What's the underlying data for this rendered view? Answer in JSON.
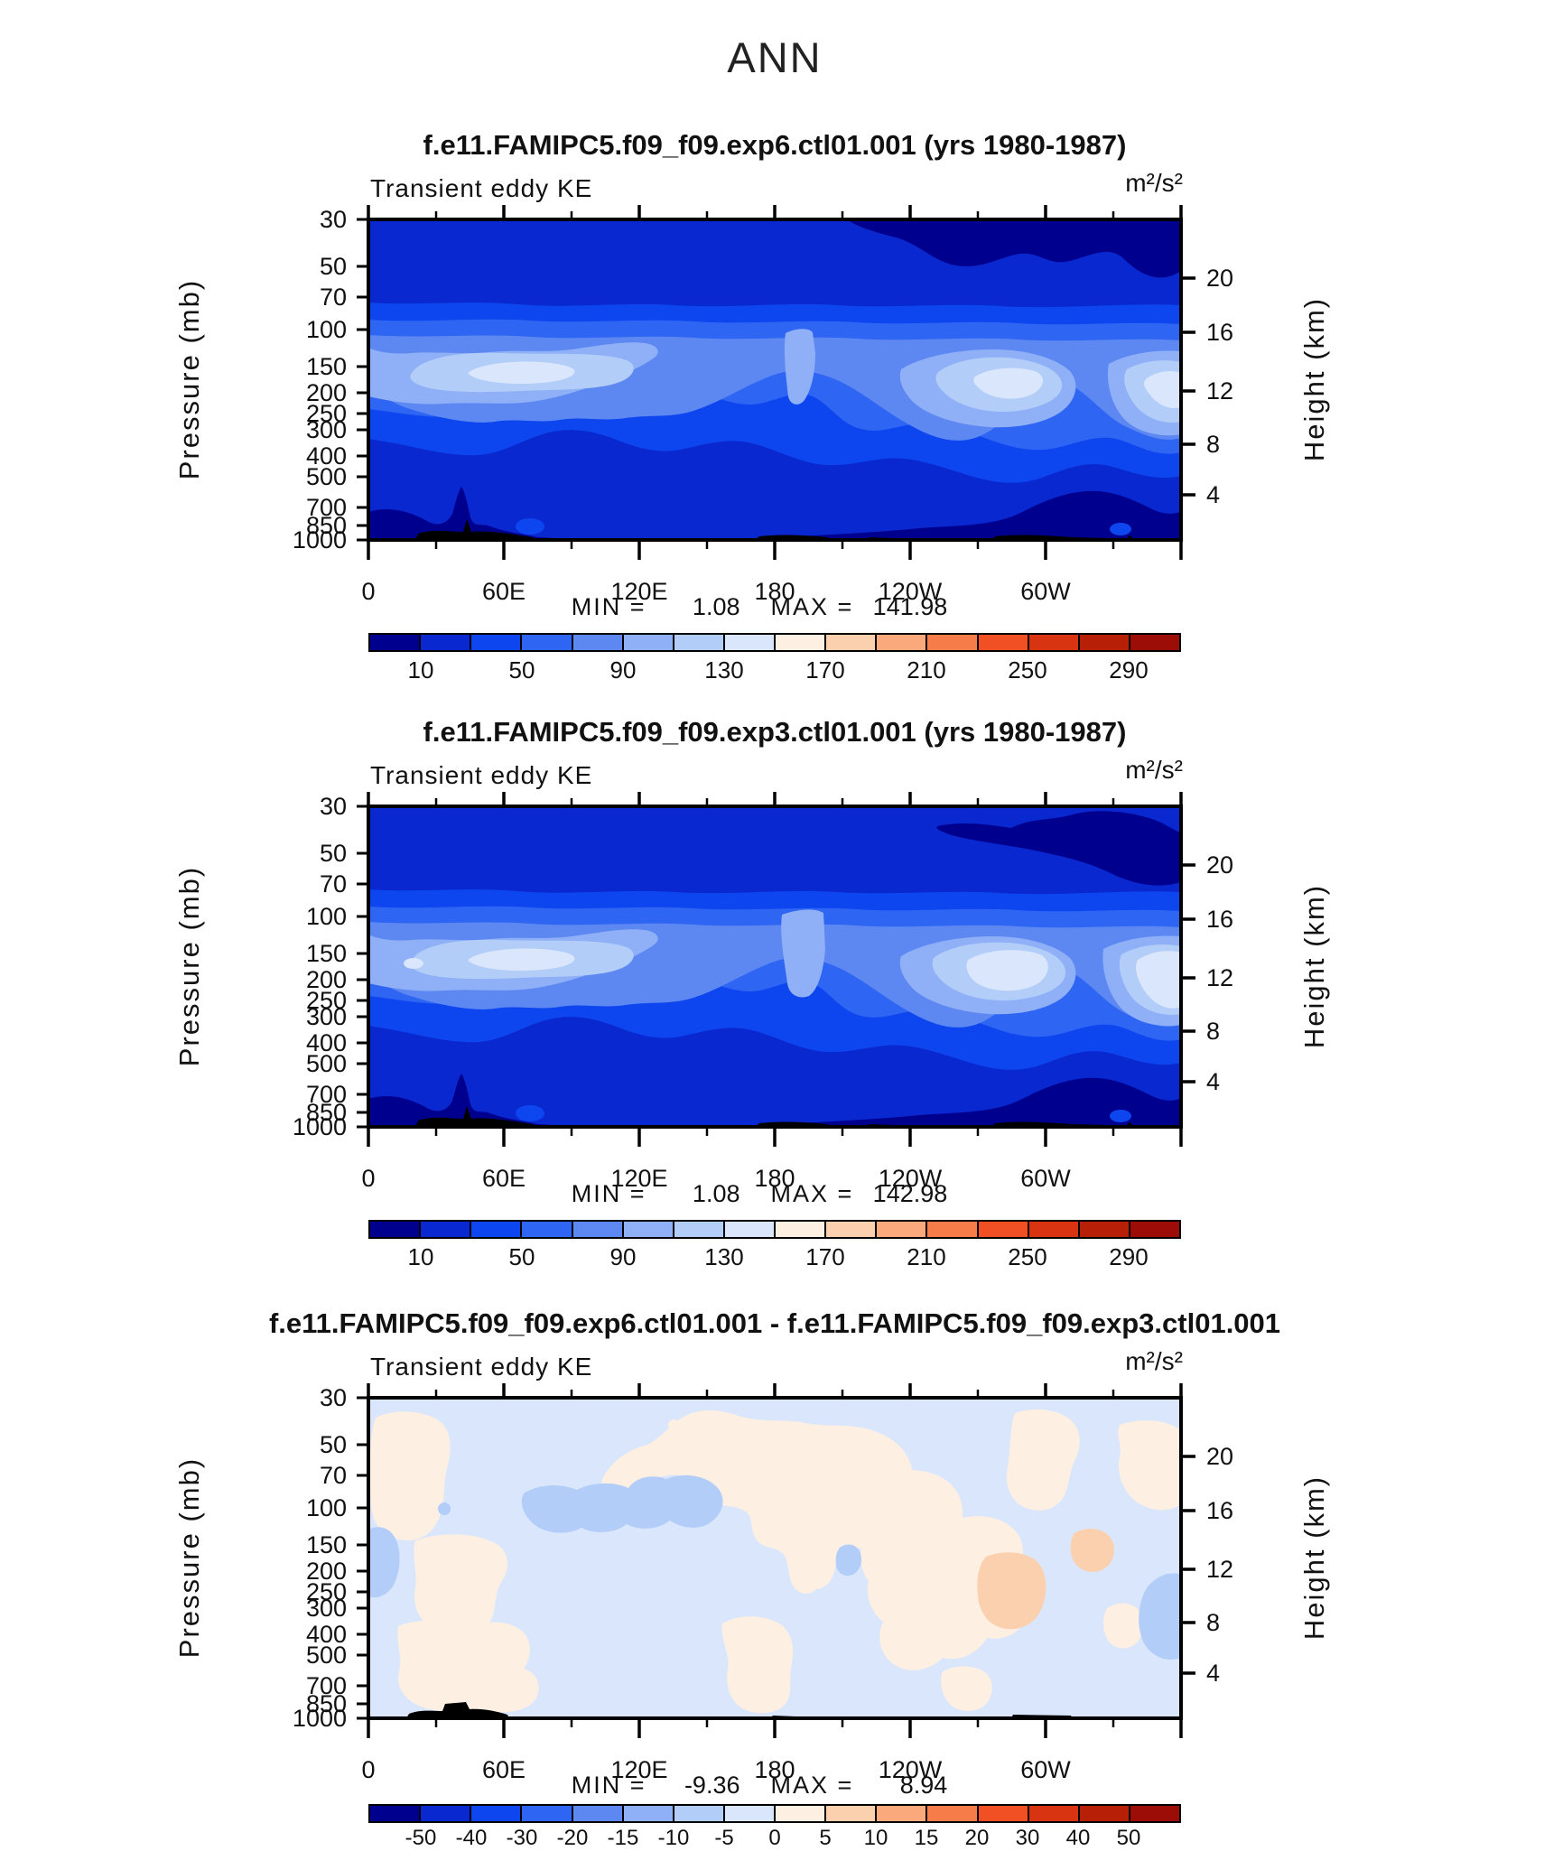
{
  "page": {
    "season_title": "ANN"
  },
  "palette": [
    "#00008f",
    "#0a28cf",
    "#0d45ee",
    "#2e65f3",
    "#5d88f2",
    "#8fb0f7",
    "#b3cdf9",
    "#d9e6fb",
    "#fdf0e3",
    "#fbd0ae",
    "#f9a97c",
    "#f67c4a",
    "#f05023",
    "#d93411",
    "#b81f07",
    "#9b0d06"
  ],
  "axes": {
    "pressure_label": "Pressure (mb)",
    "pressure_ticks": [
      "30",
      "50",
      "70",
      "100",
      "150",
      "200",
      "250",
      "300",
      "400",
      "500",
      "700",
      "850",
      "1000"
    ],
    "height_label": "Height (km)",
    "height_ticks": [
      "20",
      "16",
      "12",
      "8",
      "4"
    ],
    "lon_ticks": [
      "0",
      "60E",
      "120E",
      "180",
      "120W",
      "60W"
    ]
  },
  "panels": [
    {
      "id": "exp6",
      "title": "f.e11.FAMIPC5.f09_f09.exp6.ctl01.001 (yrs 1980-1987)",
      "field_label": "Transient eddy KE",
      "units": "m²/s²",
      "min_label": "MIN =",
      "min_value": "1.08",
      "max_label": "MAX =",
      "max_value": "141.98"
    },
    {
      "id": "exp3",
      "title": "f.e11.FAMIPC5.f09_f09.exp3.ctl01.001 (yrs 1980-1987)",
      "field_label": "Transient eddy KE",
      "units": "m²/s²",
      "min_label": "MIN =",
      "min_value": "1.08",
      "max_label": "MAX =",
      "max_value": "142.98"
    },
    {
      "id": "diff",
      "title": "f.e11.FAMIPC5.f09_f09.exp6.ctl01.001 - f.e11.FAMIPC5.f09_f09.exp3.ctl01.001",
      "field_label": "Transient eddy KE",
      "units": "m²/s²",
      "min_label": "MIN =",
      "min_value": "-9.36",
      "max_label": "MAX =",
      "max_value": "8.94"
    }
  ],
  "colorbar_main": {
    "labels": [
      "10",
      "50",
      "90",
      "130",
      "170",
      "210",
      "250",
      "290"
    ]
  },
  "colorbar_diff": {
    "labels": [
      "-50",
      "-40",
      "-30",
      "-20",
      "-15",
      "-10",
      "-5",
      "0",
      "5",
      "10",
      "15",
      "20",
      "30",
      "40",
      "50"
    ]
  },
  "chart_data": [
    {
      "type": "contour",
      "panel": "top",
      "season": "ANN",
      "title": "f.e11.FAMIPC5.f09_f09.exp6.ctl01.001 (yrs 1980-1987)",
      "variable": "Transient eddy KE",
      "units": "m2/s2",
      "x_axis": {
        "ticks": [
          "0",
          "60E",
          "120E",
          "180",
          "120W",
          "60W"
        ],
        "range_deg": [
          0,
          360
        ]
      },
      "y_left": {
        "label": "Pressure (mb)",
        "ticks": [
          30,
          50,
          70,
          100,
          150,
          200,
          250,
          300,
          400,
          500,
          700,
          850,
          1000
        ],
        "scale": "log"
      },
      "y_right": {
        "label": "Height (km)",
        "ticks": [
          20,
          16,
          12,
          8,
          4
        ]
      },
      "contour_levels": [
        10,
        30,
        50,
        70,
        90,
        110,
        130,
        150,
        170,
        190,
        210,
        230,
        250,
        270,
        290
      ],
      "min": 1.08,
      "max": 141.98,
      "features": "Background 10-30 m2/s2; three jet-level maxima of 130-150 m2/s2 near 150-200 mb centered about 40E, 130W and 15W; values below 10 in upper stratosphere (30-50 mb) over 150W-0 and near the surface; black terrain silhouettes near 1000 mb around 20-45E, 120-130E and 70-30W"
    },
    {
      "type": "contour",
      "panel": "middle",
      "season": "ANN",
      "title": "f.e11.FAMIPC5.f09_f09.exp3.ctl01.001 (yrs 1980-1987)",
      "variable": "Transient eddy KE",
      "units": "m2/s2",
      "x_axis": {
        "ticks": [
          "0",
          "60E",
          "120E",
          "180",
          "120W",
          "60W"
        ],
        "range_deg": [
          0,
          360
        ]
      },
      "y_left": {
        "label": "Pressure (mb)",
        "ticks": [
          30,
          50,
          70,
          100,
          150,
          200,
          250,
          300,
          400,
          500,
          700,
          850,
          1000
        ],
        "scale": "log"
      },
      "y_right": {
        "label": "Height (km)",
        "ticks": [
          20,
          16,
          12,
          8,
          4
        ]
      },
      "contour_levels": [
        10,
        30,
        50,
        70,
        90,
        110,
        130,
        150,
        170,
        190,
        210,
        230,
        250,
        270,
        290
      ],
      "min": 1.08,
      "max": 142.98,
      "features": "Nearly identical to top panel; <10 m2/s2 stratospheric patch confined to about 110W-0 at 30-50 mb; slightly stronger eastern-Pacific/Atlantic jet cores (130-150 m2/s2) near 150-200 mb"
    },
    {
      "type": "contour",
      "panel": "bottom",
      "season": "ANN",
      "title": "f.e11.FAMIPC5.f09_f09.exp6.ctl01.001 - f.e11.FAMIPC5.f09_f09.exp3.ctl01.001",
      "variable": "Transient eddy KE difference",
      "units": "m2/s2",
      "x_axis": {
        "ticks": [
          "0",
          "60E",
          "120E",
          "180",
          "120W",
          "60W"
        ],
        "range_deg": [
          0,
          360
        ]
      },
      "y_left": {
        "label": "Pressure (mb)",
        "ticks": [
          30,
          50,
          70,
          100,
          150,
          200,
          250,
          300,
          400,
          500,
          700,
          850,
          1000
        ],
        "scale": "log"
      },
      "y_right": {
        "label": "Height (km)",
        "ticks": [
          20,
          16,
          12,
          8,
          4
        ]
      },
      "contour_levels": [
        -50,
        -40,
        -30,
        -20,
        -15,
        -10,
        -5,
        0,
        5,
        10,
        15,
        20,
        30,
        40,
        50
      ],
      "min": -9.36,
      "max": 8.94,
      "features": "Differences mostly between -5 and +5 m2/s2; positive 5-10 m2/s2 pockets near 90W and 70W at 150-300 mb; negative -10 to -5 m2/s2 pockets near 70-120E at ~100 mb, at the 0/360 edges in mid-troposphere, and small spots near the date line"
    }
  ]
}
